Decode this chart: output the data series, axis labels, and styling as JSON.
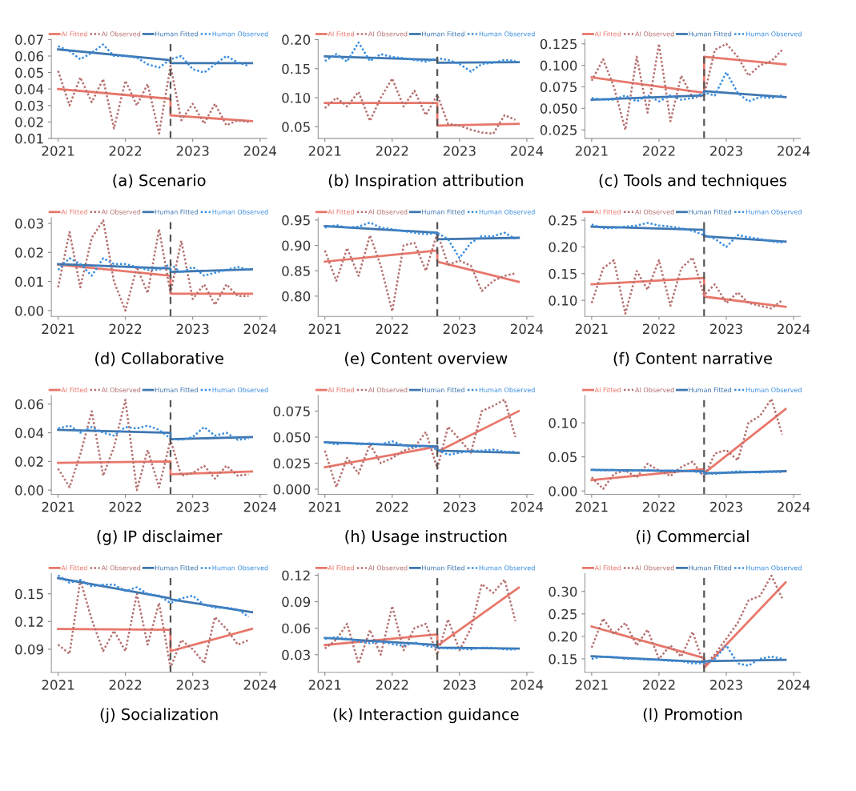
{
  "chart_data": [
    {
      "type": "line",
      "xlabel": "(a) Scenario",
      "legend": "top",
      "xlim": [
        2020.9,
        2024.1
      ],
      "xticks": [
        2021,
        2022,
        2023,
        2024
      ],
      "ylim": [
        0.01,
        0.07
      ],
      "yticks": [
        {
          "value": 0.01,
          "label": "0.01"
        },
        {
          "value": 0.02,
          "label": "0.02"
        },
        {
          "value": 0.03,
          "label": "0.03"
        },
        {
          "value": 0.04,
          "label": "0.04"
        },
        {
          "value": 0.05,
          "label": "0.05"
        },
        {
          "value": 0.06,
          "label": "0.06"
        },
        {
          "value": 0.07,
          "label": "0.07"
        }
      ],
      "ref_lines": [
        {
          "axis": "x",
          "value": 2022.67,
          "color": "#555555",
          "line_style": "dashed"
        }
      ],
      "x": [
        2021.0,
        2021.17,
        2021.33,
        2021.5,
        2021.67,
        2021.83,
        2022.0,
        2022.17,
        2022.33,
        2022.5,
        2022.67,
        2022.83,
        2023.0,
        2023.17,
        2023.33,
        2023.5,
        2023.67,
        2023.83
      ],
      "series": [
        {
          "name": "AI Fitted",
          "color": "#e8776b",
          "line_style": "solid",
          "x": [
            2021.0,
            2022.67,
            2022.67,
            2023.88
          ],
          "values": [
            0.04,
            0.034,
            0.024,
            0.0205
          ]
        },
        {
          "name": "AI Observed",
          "color": "#b5706f",
          "line_style": "dotted",
          "values": [
            0.051,
            0.03,
            0.047,
            0.032,
            0.046,
            0.016,
            0.045,
            0.03,
            0.043,
            0.013,
            0.054,
            0.021,
            0.031,
            0.019,
            0.031,
            0.018,
            0.021,
            0.02
          ]
        },
        {
          "name": "Human Fitted",
          "color": "#3f77b0",
          "line_style": "solid",
          "x": [
            2021.0,
            2022.67,
            2022.67,
            2023.88
          ],
          "values": [
            0.064,
            0.0575,
            0.0557,
            0.0557
          ]
        },
        {
          "name": "Human Observed",
          "color": "#3a8ee0",
          "line_style": "dotted",
          "values": [
            0.066,
            0.063,
            0.058,
            0.062,
            0.067,
            0.06,
            0.06,
            0.059,
            0.055,
            0.053,
            0.058,
            0.06,
            0.052,
            0.05,
            0.055,
            0.06,
            0.056,
            0.054
          ]
        }
      ]
    },
    {
      "type": "line",
      "xlabel": "(b) Inspiration attribution",
      "legend": "top",
      "xlim": [
        2020.9,
        2024.1
      ],
      "xticks": [
        2021,
        2022,
        2023,
        2024
      ],
      "ylim": [
        0.03,
        0.2
      ],
      "yticks": [
        {
          "value": 0.05,
          "label": "0.05"
        },
        {
          "value": 0.1,
          "label": "0.10"
        },
        {
          "value": 0.15,
          "label": "0.15"
        },
        {
          "value": 0.2,
          "label": "0.20"
        }
      ],
      "ref_lines": [
        {
          "axis": "x",
          "value": 2022.67,
          "color": "#555555",
          "line_style": "dashed"
        }
      ],
      "x": [
        2021.0,
        2021.17,
        2021.33,
        2021.5,
        2021.67,
        2021.83,
        2022.0,
        2022.17,
        2022.33,
        2022.5,
        2022.67,
        2022.83,
        2023.0,
        2023.17,
        2023.33,
        2023.5,
        2023.67,
        2023.83
      ],
      "series": [
        {
          "name": "AI Fitted",
          "color": "#e8776b",
          "line_style": "solid",
          "x": [
            2021.0,
            2022.67,
            2022.67,
            2023.88
          ],
          "values": [
            0.091,
            0.091,
            0.052,
            0.055
          ]
        },
        {
          "name": "AI Observed",
          "color": "#b5706f",
          "line_style": "dotted",
          "values": [
            0.082,
            0.1,
            0.085,
            0.11,
            0.06,
            0.1,
            0.133,
            0.085,
            0.112,
            0.07,
            0.105,
            0.055,
            0.052,
            0.045,
            0.04,
            0.038,
            0.07,
            0.062
          ]
        },
        {
          "name": "Human Fitted",
          "color": "#3f77b0",
          "line_style": "solid",
          "x": [
            2021.0,
            2022.67,
            2022.67,
            2023.88
          ],
          "values": [
            0.171,
            0.165,
            0.16,
            0.161
          ]
        },
        {
          "name": "Human Observed",
          "color": "#3a8ee0",
          "line_style": "dotted",
          "values": [
            0.163,
            0.175,
            0.162,
            0.195,
            0.163,
            0.175,
            0.17,
            0.168,
            0.165,
            0.162,
            0.168,
            0.165,
            0.158,
            0.145,
            0.158,
            0.16,
            0.165,
            0.163
          ]
        }
      ]
    },
    {
      "type": "line",
      "xlabel": "(c) Tools and techniques",
      "legend": "top",
      "xlim": [
        2020.9,
        2024.1
      ],
      "xticks": [
        2021,
        2022,
        2023,
        2024
      ],
      "ylim": [
        0.015,
        0.13
      ],
      "yticks": [
        {
          "value": 0.025,
          "label": "0.025"
        },
        {
          "value": 0.05,
          "label": "0.050"
        },
        {
          "value": 0.075,
          "label": "0.075"
        },
        {
          "value": 0.1,
          "label": "0.100"
        },
        {
          "value": 0.125,
          "label": "0.125"
        }
      ],
      "ref_lines": [
        {
          "axis": "x",
          "value": 2022.67,
          "color": "#555555",
          "line_style": "dashed"
        }
      ],
      "x": [
        2021.0,
        2021.17,
        2021.33,
        2021.5,
        2021.67,
        2021.83,
        2022.0,
        2022.17,
        2022.33,
        2022.5,
        2022.67,
        2022.83,
        2023.0,
        2023.17,
        2023.33,
        2023.5,
        2023.67,
        2023.83
      ],
      "series": [
        {
          "name": "AI Fitted",
          "color": "#e8776b",
          "line_style": "solid",
          "x": [
            2021.0,
            2022.67,
            2022.67,
            2023.88
          ],
          "values": [
            0.086,
            0.068,
            0.11,
            0.101
          ]
        },
        {
          "name": "AI Observed",
          "color": "#b5706f",
          "line_style": "dotted",
          "values": [
            0.082,
            0.107,
            0.075,
            0.025,
            0.11,
            0.045,
            0.125,
            0.035,
            0.088,
            0.062,
            0.065,
            0.118,
            0.125,
            0.11,
            0.088,
            0.1,
            0.105,
            0.118
          ]
        },
        {
          "name": "Human Fitted",
          "color": "#3f77b0",
          "line_style": "solid",
          "x": [
            2021.0,
            2022.67,
            2022.67,
            2023.88
          ],
          "values": [
            0.06,
            0.065,
            0.07,
            0.063
          ]
        },
        {
          "name": "Human Observed",
          "color": "#3a8ee0",
          "line_style": "dotted",
          "values": [
            0.062,
            0.06,
            0.06,
            0.065,
            0.058,
            0.065,
            0.058,
            0.065,
            0.06,
            0.062,
            0.068,
            0.065,
            0.092,
            0.068,
            0.058,
            0.063,
            0.062,
            0.065
          ]
        }
      ]
    },
    {
      "type": "line",
      "xlabel": "(d) Collaborative",
      "legend": "top",
      "xlim": [
        2020.9,
        2024.1
      ],
      "xticks": [
        2021,
        2022,
        2023,
        2024
      ],
      "ylim": [
        -0.002,
        0.032
      ],
      "yticks": [
        {
          "value": 0.0,
          "label": "0.00"
        },
        {
          "value": 0.01,
          "label": "0.01"
        },
        {
          "value": 0.02,
          "label": "0.02"
        },
        {
          "value": 0.03,
          "label": "0.03"
        }
      ],
      "ref_lines": [
        {
          "axis": "x",
          "value": 2022.67,
          "color": "#555555",
          "line_style": "dashed"
        }
      ],
      "x": [
        2021.0,
        2021.17,
        2021.33,
        2021.5,
        2021.67,
        2021.83,
        2022.0,
        2022.17,
        2022.33,
        2022.5,
        2022.67,
        2022.83,
        2023.0,
        2023.17,
        2023.33,
        2023.5,
        2023.67,
        2023.83
      ],
      "series": [
        {
          "name": "AI Fitted",
          "color": "#e8776b",
          "line_style": "solid",
          "x": [
            2021.0,
            2022.67,
            2022.67,
            2023.88
          ],
          "values": [
            0.0158,
            0.012,
            0.0058,
            0.0058
          ]
        },
        {
          "name": "AI Observed",
          "color": "#b5706f",
          "line_style": "dotted",
          "values": [
            0.008,
            0.027,
            0.008,
            0.025,
            0.031,
            0.01,
            0.0,
            0.015,
            0.006,
            0.028,
            0.006,
            0.024,
            0.004,
            0.009,
            0.002,
            0.009,
            0.005,
            0.005
          ]
        },
        {
          "name": "Human Fitted",
          "color": "#3f77b0",
          "line_style": "solid",
          "x": [
            2021.0,
            2022.67,
            2022.67,
            2023.88
          ],
          "values": [
            0.016,
            0.0145,
            0.0133,
            0.0142
          ]
        },
        {
          "name": "Human Observed",
          "color": "#3a8ee0",
          "line_style": "dotted",
          "values": [
            0.014,
            0.018,
            0.016,
            0.012,
            0.018,
            0.016,
            0.016,
            0.015,
            0.014,
            0.014,
            0.016,
            0.013,
            0.015,
            0.012,
            0.013,
            0.014,
            0.015,
            0.014
          ]
        }
      ]
    },
    {
      "type": "line",
      "xlabel": "(e) Content overview",
      "legend": "top",
      "xlim": [
        2020.9,
        2024.1
      ],
      "xticks": [
        2021,
        2022,
        2023,
        2024
      ],
      "ylim": [
        0.76,
        0.955
      ],
      "yticks": [
        {
          "value": 0.8,
          "label": "0.80"
        },
        {
          "value": 0.85,
          "label": "0.85"
        },
        {
          "value": 0.9,
          "label": "0.90"
        },
        {
          "value": 0.95,
          "label": "0.95"
        }
      ],
      "ref_lines": [
        {
          "axis": "x",
          "value": 2022.67,
          "color": "#555555",
          "line_style": "dashed"
        }
      ],
      "x": [
        2021.0,
        2021.17,
        2021.33,
        2021.5,
        2021.67,
        2021.83,
        2022.0,
        2022.17,
        2022.33,
        2022.5,
        2022.67,
        2022.83,
        2023.0,
        2023.17,
        2023.33,
        2023.5,
        2023.67,
        2023.83
      ],
      "series": [
        {
          "name": "AI Fitted",
          "color": "#e8776b",
          "line_style": "solid",
          "x": [
            2021.0,
            2022.67,
            2022.67,
            2023.88
          ],
          "values": [
            0.868,
            0.89,
            0.868,
            0.828
          ]
        },
        {
          "name": "AI Observed",
          "color": "#b5706f",
          "line_style": "dotted",
          "values": [
            0.89,
            0.83,
            0.895,
            0.84,
            0.92,
            0.86,
            0.77,
            0.9,
            0.905,
            0.85,
            0.925,
            0.862,
            0.87,
            0.86,
            0.81,
            0.83,
            0.84,
            0.845
          ]
        },
        {
          "name": "Human Fitted",
          "color": "#3f77b0",
          "line_style": "solid",
          "x": [
            2021.0,
            2022.67,
            2022.67,
            2023.88
          ],
          "values": [
            0.938,
            0.925,
            0.912,
            0.915
          ]
        },
        {
          "name": "Human Observed",
          "color": "#3a8ee0",
          "line_style": "dotted",
          "values": [
            0.935,
            0.94,
            0.935,
            0.937,
            0.945,
            0.935,
            0.932,
            0.928,
            0.925,
            0.922,
            0.925,
            0.912,
            0.875,
            0.905,
            0.918,
            0.918,
            0.925,
            0.913
          ]
        }
      ]
    },
    {
      "type": "line",
      "xlabel": "(f) Content narrative",
      "legend": "top",
      "xlim": [
        2020.9,
        2024.1
      ],
      "xticks": [
        2021,
        2022,
        2023,
        2024
      ],
      "ylim": [
        0.07,
        0.255
      ],
      "yticks": [
        {
          "value": 0.1,
          "label": "0.10"
        },
        {
          "value": 0.15,
          "label": "0.15"
        },
        {
          "value": 0.2,
          "label": "0.20"
        },
        {
          "value": 0.25,
          "label": "0.25"
        }
      ],
      "ref_lines": [
        {
          "axis": "x",
          "value": 2022.67,
          "color": "#555555",
          "line_style": "dashed"
        }
      ],
      "x": [
        2021.0,
        2021.17,
        2021.33,
        2021.5,
        2021.67,
        2021.83,
        2022.0,
        2022.17,
        2022.33,
        2022.5,
        2022.67,
        2022.83,
        2023.0,
        2023.17,
        2023.33,
        2023.5,
        2023.67,
        2023.83
      ],
      "series": [
        {
          "name": "AI Fitted",
          "color": "#e8776b",
          "line_style": "solid",
          "x": [
            2021.0,
            2022.67,
            2022.67,
            2023.88
          ],
          "values": [
            0.13,
            0.142,
            0.107,
            0.088
          ]
        },
        {
          "name": "AI Observed",
          "color": "#b5706f",
          "line_style": "dotted",
          "values": [
            0.095,
            0.16,
            0.175,
            0.075,
            0.155,
            0.12,
            0.175,
            0.09,
            0.16,
            0.18,
            0.11,
            0.13,
            0.095,
            0.115,
            0.095,
            0.09,
            0.085,
            0.1
          ]
        },
        {
          "name": "Human Fitted",
          "color": "#3f77b0",
          "line_style": "solid",
          "x": [
            2021.0,
            2022.67,
            2022.67,
            2023.88
          ],
          "values": [
            0.238,
            0.232,
            0.22,
            0.21
          ]
        },
        {
          "name": "Human Observed",
          "color": "#3a8ee0",
          "line_style": "dotted",
          "values": [
            0.242,
            0.235,
            0.235,
            0.238,
            0.24,
            0.245,
            0.24,
            0.238,
            0.235,
            0.23,
            0.222,
            0.215,
            0.2,
            0.222,
            0.218,
            0.215,
            0.21,
            0.208
          ]
        }
      ]
    },
    {
      "type": "line",
      "xlabel": "(g) IP disclaimer",
      "legend": "top",
      "xlim": [
        2020.9,
        2024.1
      ],
      "xticks": [
        2021,
        2022,
        2023,
        2024
      ],
      "ylim": [
        -0.003,
        0.066
      ],
      "yticks": [
        {
          "value": 0.0,
          "label": "0.00"
        },
        {
          "value": 0.02,
          "label": "0.02"
        },
        {
          "value": 0.04,
          "label": "0.04"
        },
        {
          "value": 0.06,
          "label": "0.06"
        }
      ],
      "ref_lines": [
        {
          "axis": "x",
          "value": 2022.67,
          "color": "#555555",
          "line_style": "dashed"
        }
      ],
      "x": [
        2021.0,
        2021.17,
        2021.33,
        2021.5,
        2021.67,
        2021.83,
        2022.0,
        2022.17,
        2022.33,
        2022.5,
        2022.67,
        2022.83,
        2023.0,
        2023.17,
        2023.33,
        2023.5,
        2023.67,
        2023.83
      ],
      "series": [
        {
          "name": "AI Fitted",
          "color": "#e8776b",
          "line_style": "solid",
          "x": [
            2021.0,
            2022.67,
            2022.67,
            2023.88
          ],
          "values": [
            0.019,
            0.02,
            0.011,
            0.013
          ]
        },
        {
          "name": "AI Observed",
          "color": "#b5706f",
          "line_style": "dotted",
          "values": [
            0.015,
            0.002,
            0.025,
            0.055,
            0.01,
            0.03,
            0.063,
            0.0,
            0.028,
            0.002,
            0.035,
            0.01,
            0.012,
            0.017,
            0.008,
            0.017,
            0.01,
            0.011
          ]
        },
        {
          "name": "Human Fitted",
          "color": "#3f77b0",
          "line_style": "solid",
          "x": [
            2021.0,
            2022.67,
            2022.67,
            2023.88
          ],
          "values": [
            0.042,
            0.04,
            0.0355,
            0.037
          ]
        },
        {
          "name": "Human Observed",
          "color": "#3a8ee0",
          "line_style": "dotted",
          "values": [
            0.043,
            0.045,
            0.04,
            0.044,
            0.04,
            0.038,
            0.044,
            0.043,
            0.045,
            0.042,
            0.036,
            0.035,
            0.037,
            0.044,
            0.038,
            0.04,
            0.035,
            0.036
          ]
        }
      ]
    },
    {
      "type": "line",
      "xlabel": "(h) Usage instruction",
      "legend": "top",
      "xlim": [
        2020.9,
        2024.1
      ],
      "xticks": [
        2021,
        2022,
        2023,
        2024
      ],
      "ylim": [
        -0.005,
        0.09
      ],
      "yticks": [
        {
          "value": 0.0,
          "label": "0.000"
        },
        {
          "value": 0.025,
          "label": "0.025"
        },
        {
          "value": 0.05,
          "label": "0.050"
        },
        {
          "value": 0.075,
          "label": "0.075"
        }
      ],
      "ref_lines": [
        {
          "axis": "x",
          "value": 2022.67,
          "color": "#555555",
          "line_style": "dashed"
        }
      ],
      "x": [
        2021.0,
        2021.17,
        2021.33,
        2021.5,
        2021.67,
        2021.83,
        2022.0,
        2022.17,
        2022.33,
        2022.5,
        2022.67,
        2022.83,
        2023.0,
        2023.17,
        2023.33,
        2023.5,
        2023.67,
        2023.83
      ],
      "series": [
        {
          "name": "AI Fitted",
          "color": "#e8776b",
          "line_style": "solid",
          "x": [
            2021.0,
            2022.67,
            2022.67,
            2023.88
          ],
          "values": [
            0.021,
            0.041,
            0.036,
            0.075
          ]
        },
        {
          "name": "AI Observed",
          "color": "#b5706f",
          "line_style": "dotted",
          "values": [
            0.037,
            0.002,
            0.03,
            0.015,
            0.043,
            0.025,
            0.03,
            0.037,
            0.04,
            0.055,
            0.02,
            0.06,
            0.048,
            0.035,
            0.075,
            0.08,
            0.086,
            0.05
          ]
        },
        {
          "name": "Human Fitted",
          "color": "#3f77b0",
          "line_style": "solid",
          "x": [
            2021.0,
            2022.67,
            2022.67,
            2023.88
          ],
          "values": [
            0.045,
            0.041,
            0.037,
            0.035
          ]
        },
        {
          "name": "Human Observed",
          "color": "#3a8ee0",
          "line_style": "dotted",
          "values": [
            0.045,
            0.043,
            0.045,
            0.043,
            0.044,
            0.043,
            0.046,
            0.042,
            0.04,
            0.042,
            0.038,
            0.033,
            0.035,
            0.037,
            0.037,
            0.038,
            0.036,
            0.036
          ]
        }
      ]
    },
    {
      "type": "line",
      "xlabel": "(i) Commercial",
      "legend": "top",
      "xlim": [
        2020.9,
        2024.1
      ],
      "xticks": [
        2021,
        2022,
        2023,
        2024
      ],
      "ylim": [
        -0.005,
        0.14
      ],
      "yticks": [
        {
          "value": 0.0,
          "label": "0.00"
        },
        {
          "value": 0.05,
          "label": "0.05"
        },
        {
          "value": 0.1,
          "label": "0.10"
        }
      ],
      "ref_lines": [
        {
          "axis": "x",
          "value": 2022.67,
          "color": "#555555",
          "line_style": "dashed"
        }
      ],
      "x": [
        2021.0,
        2021.17,
        2021.33,
        2021.5,
        2021.67,
        2021.83,
        2022.0,
        2022.17,
        2022.33,
        2022.5,
        2022.67,
        2022.83,
        2023.0,
        2023.17,
        2023.33,
        2023.5,
        2023.67,
        2023.83
      ],
      "series": [
        {
          "name": "AI Fitted",
          "color": "#e8776b",
          "line_style": "solid",
          "x": [
            2021.0,
            2022.67,
            2022.67,
            2023.88
          ],
          "values": [
            0.016,
            0.032,
            0.026,
            0.12
          ]
        },
        {
          "name": "AI Observed",
          "color": "#b5706f",
          "line_style": "dotted",
          "values": [
            0.02,
            0.003,
            0.025,
            0.03,
            0.02,
            0.04,
            0.03,
            0.022,
            0.035,
            0.043,
            0.02,
            0.055,
            0.06,
            0.045,
            0.1,
            0.11,
            0.135,
            0.083
          ]
        },
        {
          "name": "Human Fitted",
          "color": "#3f77b0",
          "line_style": "solid",
          "x": [
            2021.0,
            2022.67,
            2022.67,
            2023.88
          ],
          "values": [
            0.031,
            0.029,
            0.026,
            0.029
          ]
        },
        {
          "name": "Human Observed",
          "color": "#3a8ee0",
          "line_style": "dotted",
          "values": [
            0.031,
            0.03,
            0.031,
            0.029,
            0.03,
            0.031,
            0.029,
            0.03,
            0.03,
            0.029,
            0.026,
            0.025,
            0.027,
            0.029,
            0.028,
            0.027,
            0.028,
            0.028
          ]
        }
      ]
    },
    {
      "type": "line",
      "xlabel": "(j) Socialization",
      "legend": "top",
      "xlim": [
        2020.9,
        2024.1
      ],
      "xticks": [
        2021,
        2022,
        2023,
        2024
      ],
      "ylim": [
        0.065,
        0.172
      ],
      "yticks": [
        {
          "value": 0.09,
          "label": "0.09"
        },
        {
          "value": 0.12,
          "label": "0.12"
        },
        {
          "value": 0.15,
          "label": "0.15"
        }
      ],
      "ref_lines": [
        {
          "axis": "x",
          "value": 2022.67,
          "color": "#555555",
          "line_style": "dashed"
        }
      ],
      "x": [
        2021.0,
        2021.17,
        2021.33,
        2021.5,
        2021.67,
        2021.83,
        2022.0,
        2022.17,
        2022.33,
        2022.5,
        2022.67,
        2022.83,
        2023.0,
        2023.17,
        2023.33,
        2023.5,
        2023.67,
        2023.83
      ],
      "series": [
        {
          "name": "AI Fitted",
          "color": "#e8776b",
          "line_style": "solid",
          "x": [
            2021.0,
            2022.67,
            2022.67,
            2023.88
          ],
          "values": [
            0.112,
            0.111,
            0.088,
            0.112
          ]
        },
        {
          "name": "AI Observed",
          "color": "#b5706f",
          "line_style": "dotted",
          "values": [
            0.095,
            0.085,
            0.165,
            0.122,
            0.088,
            0.11,
            0.088,
            0.15,
            0.095,
            0.14,
            0.07,
            0.1,
            0.09,
            0.075,
            0.125,
            0.112,
            0.095,
            0.1
          ]
        },
        {
          "name": "Human Fitted",
          "color": "#3f77b0",
          "line_style": "solid",
          "x": [
            2021.0,
            2022.67,
            2022.67,
            2023.88
          ],
          "values": [
            0.167,
            0.145,
            0.144,
            0.13
          ]
        },
        {
          "name": "Human Observed",
          "color": "#3a8ee0",
          "line_style": "dotted",
          "values": [
            0.17,
            0.162,
            0.165,
            0.158,
            0.16,
            0.16,
            0.153,
            0.157,
            0.15,
            0.148,
            0.14,
            0.145,
            0.148,
            0.138,
            0.135,
            0.135,
            0.133,
            0.125
          ]
        }
      ]
    },
    {
      "type": "line",
      "xlabel": "(k) Interaction guidance",
      "legend": "top",
      "xlim": [
        2020.9,
        2024.1
      ],
      "xticks": [
        2021,
        2022,
        2023,
        2024
      ],
      "ylim": [
        0.01,
        0.122
      ],
      "yticks": [
        {
          "value": 0.03,
          "label": "0.03"
        },
        {
          "value": 0.06,
          "label": "0.06"
        },
        {
          "value": 0.09,
          "label": "0.09"
        },
        {
          "value": 0.12,
          "label": "0.12"
        }
      ],
      "ref_lines": [
        {
          "axis": "x",
          "value": 2022.67,
          "color": "#555555",
          "line_style": "dashed"
        }
      ],
      "x": [
        2021.0,
        2021.17,
        2021.33,
        2021.5,
        2021.67,
        2021.83,
        2022.0,
        2022.17,
        2022.33,
        2022.5,
        2022.67,
        2022.83,
        2023.0,
        2023.17,
        2023.33,
        2023.5,
        2023.67,
        2023.83
      ],
      "series": [
        {
          "name": "AI Fitted",
          "color": "#e8776b",
          "line_style": "solid",
          "x": [
            2021.0,
            2022.67,
            2022.67,
            2023.88
          ],
          "values": [
            0.041,
            0.053,
            0.04,
            0.106
          ]
        },
        {
          "name": "AI Observed",
          "color": "#b5706f",
          "line_style": "dotted",
          "values": [
            0.037,
            0.047,
            0.065,
            0.02,
            0.058,
            0.03,
            0.085,
            0.035,
            0.06,
            0.065,
            0.03,
            0.07,
            0.035,
            0.06,
            0.11,
            0.1,
            0.115,
            0.068
          ]
        },
        {
          "name": "Human Fitted",
          "color": "#3f77b0",
          "line_style": "solid",
          "x": [
            2021.0,
            2022.67,
            2022.67,
            2023.88
          ],
          "values": [
            0.049,
            0.041,
            0.038,
            0.037
          ]
        },
        {
          "name": "Human Observed",
          "color": "#3a8ee0",
          "line_style": "dotted",
          "values": [
            0.048,
            0.05,
            0.048,
            0.045,
            0.043,
            0.045,
            0.042,
            0.04,
            0.044,
            0.04,
            0.038,
            0.037,
            0.037,
            0.036,
            0.038,
            0.038,
            0.036,
            0.036
          ]
        }
      ]
    },
    {
      "type": "line",
      "xlabel": "(l) Promotion",
      "legend": "top",
      "xlim": [
        2020.9,
        2024.1
      ],
      "xticks": [
        2021,
        2022,
        2023,
        2024
      ],
      "ylim": [
        0.12,
        0.34
      ],
      "yticks": [
        {
          "value": 0.15,
          "label": "0.15"
        },
        {
          "value": 0.2,
          "label": "0.20"
        },
        {
          "value": 0.25,
          "label": "0.25"
        },
        {
          "value": 0.3,
          "label": "0.30"
        }
      ],
      "ref_lines": [
        {
          "axis": "x",
          "value": 2022.67,
          "color": "#555555",
          "line_style": "dashed"
        }
      ],
      "x": [
        2021.0,
        2021.17,
        2021.33,
        2021.5,
        2021.67,
        2021.83,
        2022.0,
        2022.17,
        2022.33,
        2022.5,
        2022.67,
        2022.83,
        2023.0,
        2023.17,
        2023.33,
        2023.5,
        2023.67,
        2023.83
      ],
      "series": [
        {
          "name": "AI Fitted",
          "color": "#e8776b",
          "line_style": "solid",
          "x": [
            2021.0,
            2022.67,
            2022.67,
            2023.88
          ],
          "values": [
            0.222,
            0.152,
            0.13,
            0.32
          ]
        },
        {
          "name": "AI Observed",
          "color": "#b5706f",
          "line_style": "dotted",
          "values": [
            0.175,
            0.24,
            0.205,
            0.23,
            0.18,
            0.215,
            0.15,
            0.18,
            0.155,
            0.21,
            0.135,
            0.16,
            0.195,
            0.23,
            0.28,
            0.29,
            0.335,
            0.285
          ]
        },
        {
          "name": "Human Fitted",
          "color": "#3f77b0",
          "line_style": "solid",
          "x": [
            2021.0,
            2022.67,
            2022.67,
            2023.88
          ],
          "values": [
            0.156,
            0.143,
            0.145,
            0.148
          ]
        },
        {
          "name": "Human Observed",
          "color": "#3a8ee0",
          "line_style": "dotted",
          "values": [
            0.15,
            0.155,
            0.155,
            0.15,
            0.15,
            0.148,
            0.148,
            0.145,
            0.145,
            0.14,
            0.14,
            0.15,
            0.18,
            0.14,
            0.135,
            0.15,
            0.155,
            0.15
          ]
        }
      ]
    }
  ]
}
